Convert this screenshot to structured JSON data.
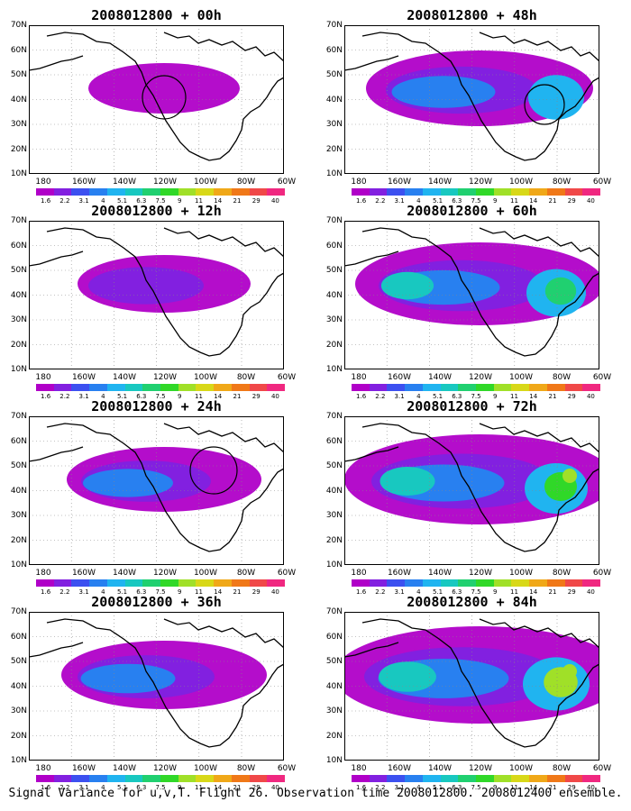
{
  "footer": "Signal Variance for u,v,T. Flight 26. Observation time 2008012800. 2008012400 ensemble.",
  "y_axis_labels": [
    "70N",
    "60N",
    "50N",
    "40N",
    "30N",
    "20N",
    "10N"
  ],
  "x_axis_labels": [
    "180",
    "160W",
    "140W",
    "120W",
    "100W",
    "80W",
    "60W"
  ],
  "colorbar": {
    "colors": [
      "#b000c8",
      "#8220e0",
      "#3c50f0",
      "#2880f0",
      "#20b4f0",
      "#18c8c0",
      "#20d070",
      "#30d828",
      "#a0e028",
      "#d8d818",
      "#f0a818",
      "#f07818",
      "#f04848",
      "#f02880"
    ],
    "labels": [
      "1.6",
      "2.2",
      "3.1",
      "4",
      "5.1",
      "6.3",
      "7.5",
      "9",
      "11",
      "14",
      "21",
      "29",
      "40"
    ]
  },
  "panels": [
    {
      "title": "2008012800 + 00h",
      "intensity": 0.2,
      "circle": "west"
    },
    {
      "title": "2008012800 + 48h",
      "intensity": 0.55,
      "circle": "east"
    },
    {
      "title": "2008012800 + 12h",
      "intensity": 0.3,
      "circle": "none"
    },
    {
      "title": "2008012800 + 60h",
      "intensity": 0.65,
      "circle": "none"
    },
    {
      "title": "2008012800 + 24h",
      "intensity": 0.4,
      "circle": "north"
    },
    {
      "title": "2008012800 + 72h",
      "intensity": 0.75,
      "circle": "none"
    },
    {
      "title": "2008012800 + 36h",
      "intensity": 0.45,
      "circle": "none"
    },
    {
      "title": "2008012800 + 84h",
      "intensity": 0.85,
      "circle": "none"
    }
  ]
}
